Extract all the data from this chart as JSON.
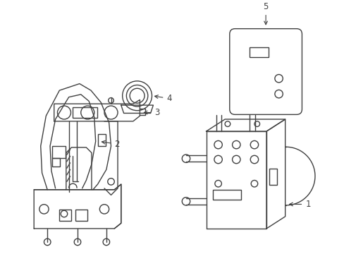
{
  "background_color": "#ffffff",
  "line_color": "#404040",
  "line_width": 1.0,
  "label_fontsize": 8.5,
  "fig_width": 4.89,
  "fig_height": 3.6,
  "dpi": 100
}
